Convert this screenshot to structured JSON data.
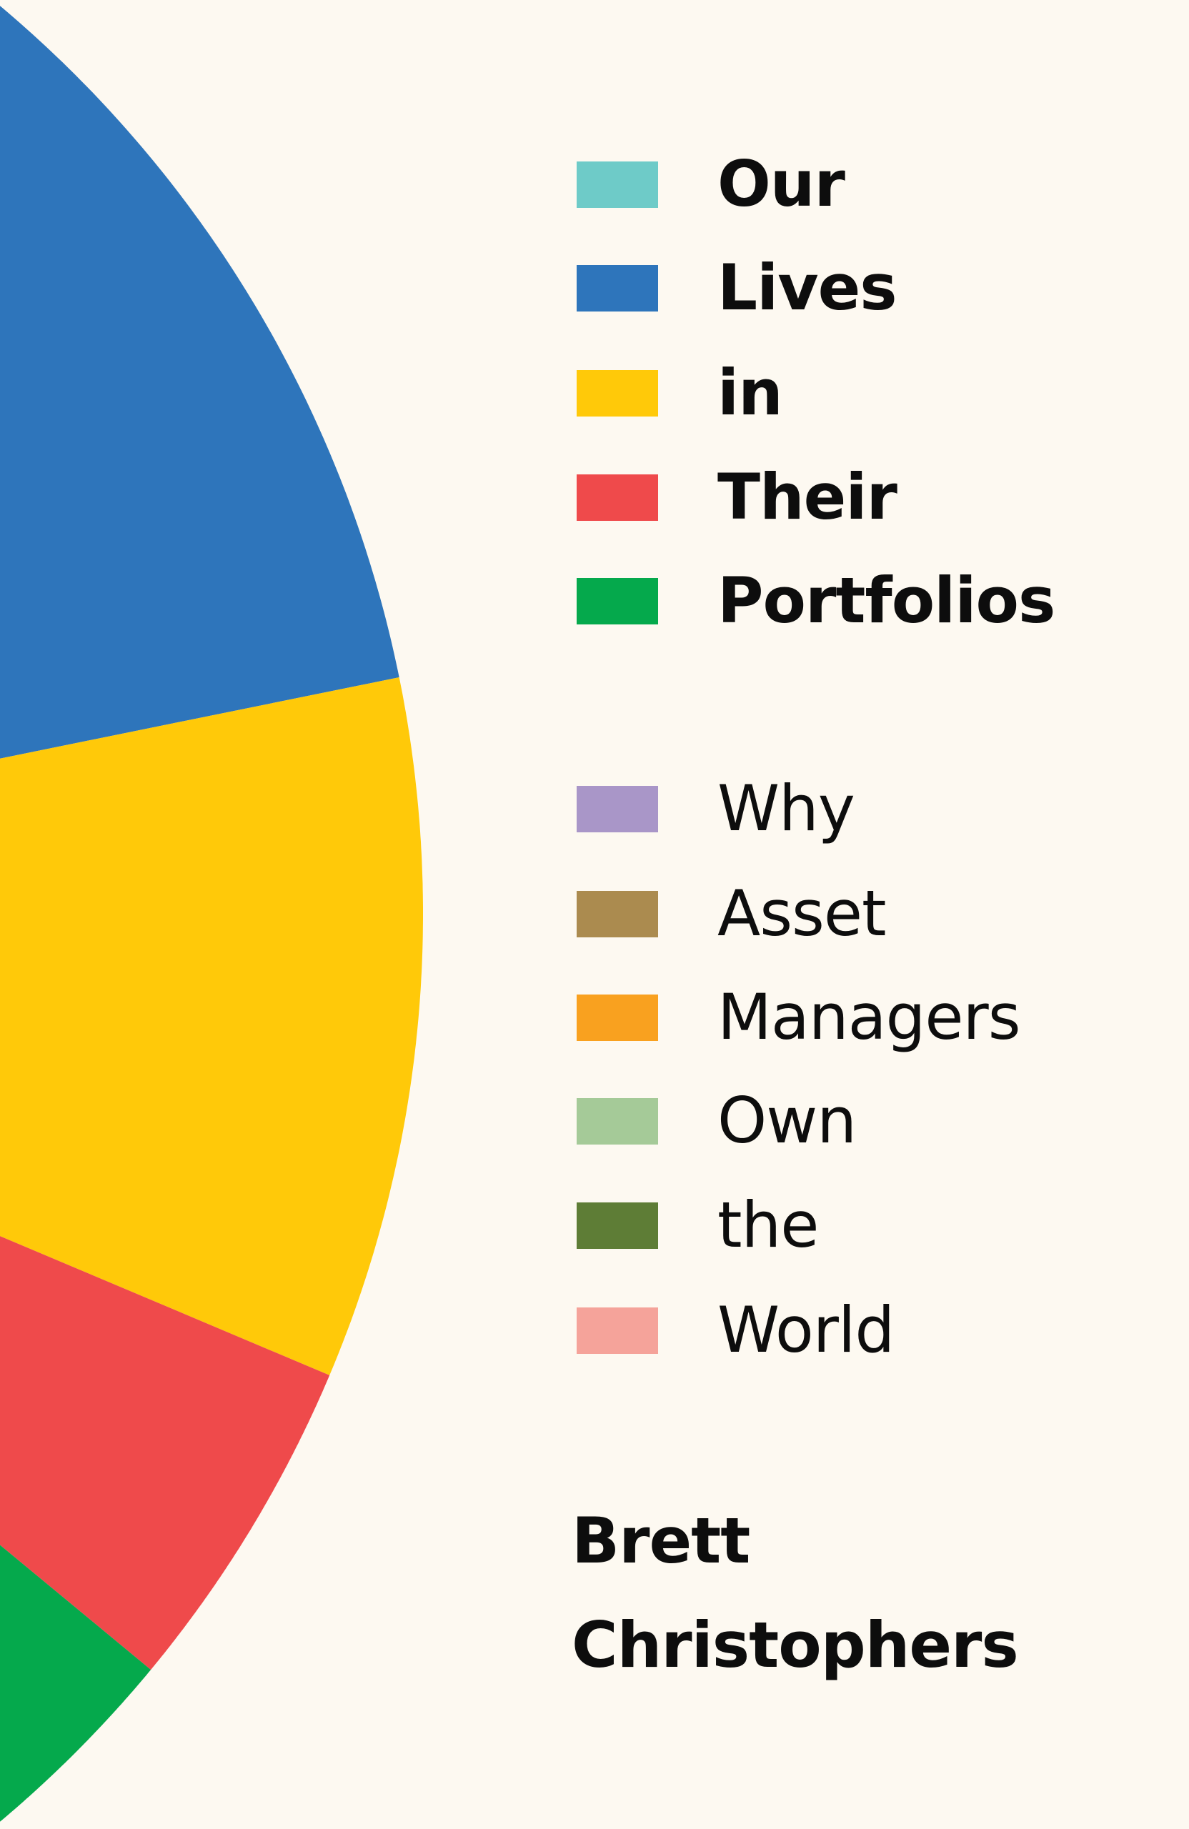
{
  "background": "#fdf9f1",
  "title_words": [
    {
      "text": "Our",
      "color": "#6ecbc8"
    },
    {
      "text": "Lives",
      "color": "#2e75bb"
    },
    {
      "text": "in",
      "color": "#ffc909"
    },
    {
      "text": "Their",
      "color": "#ef4a4b"
    },
    {
      "text": "Portfolios",
      "color": "#05a94c"
    }
  ],
  "subtitle_words": [
    {
      "text": "Why",
      "color": "#a996c8"
    },
    {
      "text": "Asset",
      "color": "#ab8b4f"
    },
    {
      "text": "Managers",
      "color": "#f9a11f"
    },
    {
      "text": "Own",
      "color": "#a5ca98"
    },
    {
      "text": "the",
      "color": "#5e7d36"
    },
    {
      "text": "World",
      "color": "#f5a39a"
    }
  ],
  "author": {
    "first": "Brett",
    "last": "Christophers"
  },
  "pie_slices_degrees": [
    {
      "color": "#2e75bb",
      "start": -60,
      "end": -11.5
    },
    {
      "color": "#ffc909",
      "start": -11.5,
      "end": 22.9
    },
    {
      "color": "#ef4a4b",
      "start": 22.9,
      "end": 39.6
    },
    {
      "color": "#05a94c",
      "start": 39.6,
      "end": 60
    }
  ]
}
